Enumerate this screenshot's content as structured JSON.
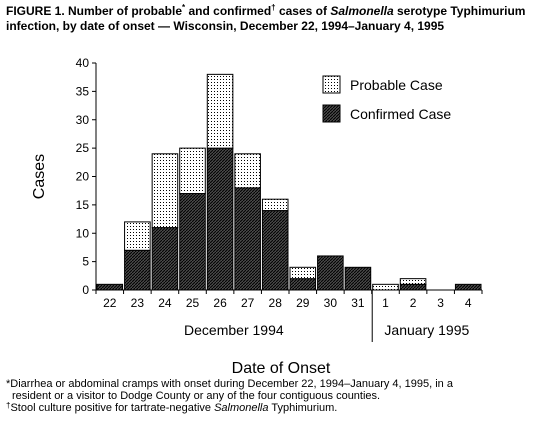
{
  "figure": {
    "title_part1": "FIGURE 1. Number of probable",
    "title_mark1": "*",
    "title_part2": " and confirmed",
    "title_mark2": "†",
    "title_part3": " cases of ",
    "title_italic": "Salmonella",
    "title_part4": " serotype Typhimurium infection, by date of onset — Wisconsin, December 22, 1994–January 4, 1995"
  },
  "footnotes": {
    "note1": "*Diarrhea or abdominal cramps with onset during December 22, 1994–January 4, 1995, in a",
    "note1_cont": "resident or a visitor to Dodge County or any of the four contiguous counties.",
    "note2_mark": "†",
    "note2_pre": "Stool culture positive for tartrate-negative ",
    "note2_italic": "Salmonella",
    "note2_post": " Typhimurium."
  },
  "colors": {
    "probable_fill": "#ffffff",
    "confirmed_fill": "#555555",
    "axis": "#000000"
  },
  "chart_data": {
    "type": "bar",
    "stacked": true,
    "categories": [
      "22",
      "23",
      "24",
      "25",
      "26",
      "27",
      "28",
      "29",
      "30",
      "31",
      "1",
      "2",
      "3",
      "4"
    ],
    "series": [
      {
        "name": "Confirmed Case",
        "values": [
          1,
          7,
          11,
          17,
          25,
          18,
          14,
          2,
          6,
          4,
          0,
          1,
          0,
          1
        ],
        "pattern": "dark-hatch"
      },
      {
        "name": "Probable Case",
        "values": [
          0,
          5,
          13,
          8,
          13,
          6,
          2,
          2,
          0,
          0,
          1,
          1,
          0,
          0
        ],
        "pattern": "light-dots"
      }
    ],
    "ylabel": "Cases",
    "xlabel": "Date of Onset",
    "month_labels": [
      "December 1994",
      "January 1995"
    ],
    "ylim": [
      0,
      40
    ],
    "yticks": [
      0,
      5,
      10,
      15,
      20,
      25,
      30,
      35,
      40
    ],
    "grid": false,
    "legend_position": "top-right",
    "legend_order": [
      "Probable Case",
      "Confirmed Case"
    ]
  }
}
